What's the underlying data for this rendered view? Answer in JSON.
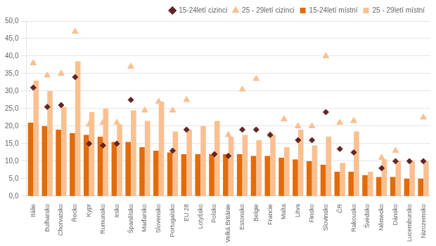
{
  "chart_data": {
    "type": "bar",
    "categories": [
      "Itálie",
      "Bulharsko",
      "Chorvatsko",
      "Řecko",
      "Kypr",
      "Rumunsko",
      "Irsko",
      "Španělsko",
      "Maďarsko",
      "Slovensko",
      "Portugalsko",
      "EU 28",
      "Lotyšsko",
      "Polsko",
      "Velká Británie",
      "Estonsko",
      "Belgie",
      "Francie",
      "Malta",
      "Litva",
      "Finsko",
      "Slovinsko",
      "ČR",
      "Rakousko",
      "Švédsko",
      "Německo",
      "Dánsko",
      "Lucembursko",
      "Nizozemsko"
    ],
    "series": [
      {
        "name": "15-24letí místní",
        "type": "bar",
        "color": "#E26B0A",
        "values": [
          21.0,
          20.0,
          19.0,
          18.0,
          17.5,
          17.0,
          15.5,
          15.5,
          14.0,
          13.0,
          12.5,
          12.0,
          12.0,
          12.0,
          12.0,
          12.0,
          11.5,
          11.5,
          11.0,
          10.5,
          10.0,
          9.0,
          7.0,
          7.0,
          6.0,
          5.5,
          5.5,
          5.0,
          5.0
        ]
      },
      {
        "name": "25 - 29letí místní",
        "type": "bar",
        "color": "#FAC090",
        "values": [
          33.0,
          30.0,
          25.5,
          38.5,
          24.0,
          25.0,
          20.5,
          24.5,
          21.5,
          27.0,
          18.5,
          19.0,
          20.0,
          21.5,
          17.0,
          17.5,
          16.0,
          17.5,
          14.0,
          19.0,
          14.5,
          17.0,
          9.5,
          18.5,
          7.0,
          10.5,
          10.0,
          10.0,
          10.0
        ]
      },
      {
        "name": "15-24letí cizinci",
        "type": "scatter",
        "marker": "diamond",
        "color": "#632523",
        "values": [
          31.0,
          25.5,
          26.0,
          34.0,
          15.0,
          14.5,
          15.0,
          27.5,
          null,
          null,
          13.0,
          19.0,
          null,
          12.0,
          11.5,
          19.0,
          19.0,
          17.5,
          null,
          16.0,
          16.0,
          24.0,
          13.5,
          12.5,
          null,
          8.0,
          10.0,
          10.0,
          10.0
        ]
      },
      {
        "name": "25 - 29letí cizinci",
        "type": "scatter",
        "marker": "triangle",
        "color": "#FAC090",
        "values": [
          38.0,
          34.5,
          35.0,
          47.0,
          20.5,
          21.0,
          21.0,
          37.0,
          24.5,
          27.0,
          24.5,
          27.5,
          null,
          null,
          17.5,
          30.5,
          33.5,
          17.5,
          22.0,
          20.0,
          20.0,
          40.0,
          21.0,
          21.5,
          null,
          11.0,
          13.0,
          null,
          22.5
        ]
      }
    ],
    "ylim": [
      0,
      50
    ],
    "yticks": [
      {
        "value": 0,
        "label": "0,0"
      },
      {
        "value": 5,
        "label": "5,0"
      },
      {
        "value": 10,
        "label": "10,0"
      },
      {
        "value": 15,
        "label": "15,0"
      },
      {
        "value": 20,
        "label": "20,0"
      },
      {
        "value": 25,
        "label": "25,0"
      },
      {
        "value": 30,
        "label": "30,0"
      },
      {
        "value": 35,
        "label": "35,0"
      },
      {
        "value": 40,
        "label": "40,0"
      },
      {
        "value": 45,
        "label": "45,0"
      },
      {
        "value": 50,
        "label": "50,0"
      }
    ],
    "grid": true,
    "legend": "upper right"
  }
}
